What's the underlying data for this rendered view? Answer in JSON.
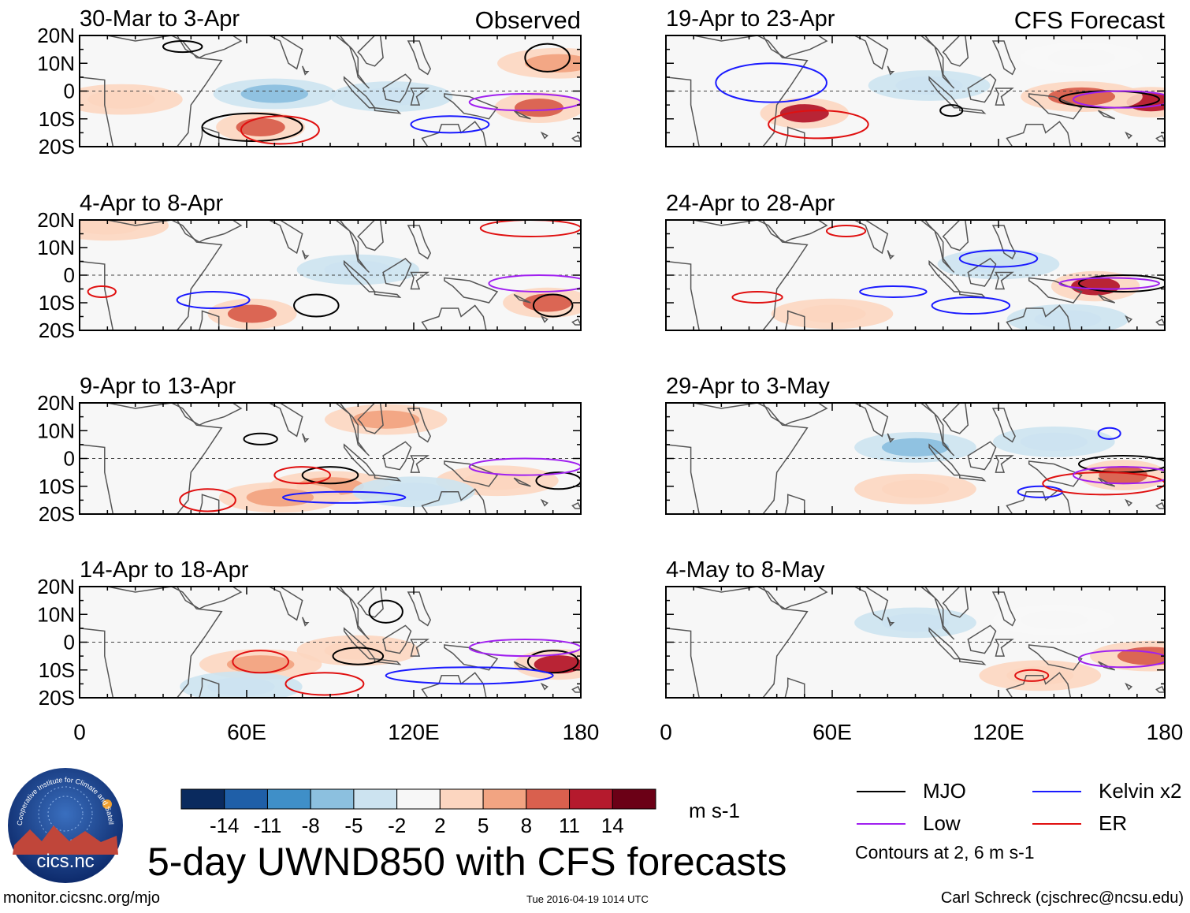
{
  "figure": {
    "title": "5-day UWND850 with CFS forecasts",
    "left_column_label": "Observed",
    "right_column_label": "CFS Forecast",
    "units": "m s-1",
    "contour_note": "Contours at 2, 6 m s-1",
    "footer_left": "monitor.cicsnc.org/mjo",
    "footer_mid": "Tue 2016-04-19 1014 UTC",
    "footer_right": "Carl Schreck (cjschrec@ncsu.edu)",
    "logo_text": "cics.nc",
    "logo_ring_text": "Cooperative Institute for Climate and Satellites"
  },
  "legend": [
    {
      "name": "MJO",
      "color": "#000000"
    },
    {
      "name": "Kelvin x2",
      "color": "#1a1aff"
    },
    {
      "name": "Low",
      "color": "#a020f0"
    },
    {
      "name": "ER",
      "color": "#e01010"
    }
  ],
  "colorbar": {
    "colors": [
      "#0a2a5e",
      "#1f5fa8",
      "#3f8fc8",
      "#8cc0df",
      "#cce3f0",
      "#f7f7f7",
      "#fcd6c0",
      "#f2a482",
      "#d9604e",
      "#b51a2d",
      "#6b0016"
    ],
    "labels": [
      "-14",
      "-11",
      "-8",
      "-5",
      "-2",
      "2",
      "5",
      "8",
      "11",
      "14"
    ]
  },
  "chart_data": [
    {
      "type": "heatmap",
      "panel": "Observed 1",
      "title": "30-Mar to 3-Apr",
      "xlim": [
        0,
        180
      ],
      "ylim": [
        -20,
        20
      ],
      "xticks": [
        0,
        60,
        120,
        180
      ],
      "xtick_labels": [
        "0",
        "60E",
        "120E",
        "180"
      ],
      "yticks": [
        20,
        10,
        0,
        -10,
        -20
      ],
      "ytick_labels": [
        "20N",
        "10N",
        "0",
        "10S",
        "20S"
      ],
      "anomalies": [
        {
          "lon": 70,
          "lat": -1,
          "value": -6
        },
        {
          "lon": 112,
          "lat": -2,
          "value": -3
        },
        {
          "lon": 65,
          "lat": -13,
          "value": 9
        },
        {
          "lon": 165,
          "lat": -6,
          "value": 9
        },
        {
          "lon": 172,
          "lat": 10,
          "value": 5
        },
        {
          "lon": 15,
          "lat": -3,
          "value": 3
        }
      ],
      "contours": [
        {
          "wave": "MJO",
          "lon": 62,
          "lat": -13,
          "rx": 18,
          "ry": 5
        },
        {
          "wave": "MJO",
          "lon": 37,
          "lat": 16,
          "rx": 7,
          "ry": 2
        },
        {
          "wave": "MJO",
          "lon": 168,
          "lat": 12,
          "rx": 8,
          "ry": 5
        },
        {
          "wave": "Kelvin x2",
          "lon": 133,
          "lat": -12,
          "rx": 14,
          "ry": 3
        },
        {
          "wave": "Low",
          "lon": 160,
          "lat": -4,
          "rx": 20,
          "ry": 3
        },
        {
          "wave": "ER",
          "lon": 72,
          "lat": -14,
          "rx": 14,
          "ry": 5
        }
      ]
    },
    {
      "type": "heatmap",
      "panel": "Observed 2",
      "title": "4-Apr to 8-Apr",
      "xlim": [
        0,
        180
      ],
      "ylim": [
        -20,
        20
      ],
      "xticks": [
        0,
        60,
        120,
        180
      ],
      "xtick_labels": [
        "0",
        "60E",
        "120E",
        "180"
      ],
      "yticks": [
        20,
        10,
        0,
        -10,
        -20
      ],
      "ytick_labels": [
        "20N",
        "10N",
        "0",
        "10S",
        "20S"
      ],
      "anomalies": [
        {
          "lon": 62,
          "lat": -14,
          "value": 9
        },
        {
          "lon": 168,
          "lat": -10,
          "value": 10
        },
        {
          "lon": 100,
          "lat": 2,
          "value": -3
        },
        {
          "lon": 10,
          "lat": 18,
          "value": 4
        }
      ],
      "contours": [
        {
          "wave": "MJO",
          "lon": 85,
          "lat": -11,
          "rx": 8,
          "ry": 4
        },
        {
          "wave": "MJO",
          "lon": 170,
          "lat": -11,
          "rx": 7,
          "ry": 4
        },
        {
          "wave": "Kelvin x2",
          "lon": 48,
          "lat": -9,
          "rx": 13,
          "ry": 3
        },
        {
          "wave": "ER",
          "lon": 162,
          "lat": 17,
          "rx": 18,
          "ry": 3
        },
        {
          "wave": "ER",
          "lon": 8,
          "lat": -6,
          "rx": 5,
          "ry": 2
        },
        {
          "wave": "Low",
          "lon": 165,
          "lat": -3,
          "rx": 18,
          "ry": 3
        }
      ]
    },
    {
      "type": "heatmap",
      "panel": "Observed 3",
      "title": "9-Apr to 13-Apr",
      "xlim": [
        0,
        180
      ],
      "ylim": [
        -20,
        20
      ],
      "xticks": [
        0,
        60,
        120,
        180
      ],
      "xtick_labels": [
        "0",
        "60E",
        "120E",
        "180"
      ],
      "yticks": [
        20,
        10,
        0,
        -10,
        -20
      ],
      "ytick_labels": [
        "20N",
        "10N",
        "0",
        "10S",
        "20S"
      ],
      "anomalies": [
        {
          "lon": 110,
          "lat": 14,
          "value": 5
        },
        {
          "lon": 90,
          "lat": -10,
          "value": 5
        },
        {
          "lon": 72,
          "lat": -14,
          "value": 7
        },
        {
          "lon": 150,
          "lat": -8,
          "value": 4
        },
        {
          "lon": 120,
          "lat": -12,
          "value": -4
        }
      ],
      "contours": [
        {
          "wave": "MJO",
          "lon": 90,
          "lat": -6,
          "rx": 10,
          "ry": 3
        },
        {
          "wave": "MJO",
          "lon": 65,
          "lat": 7,
          "rx": 6,
          "ry": 2
        },
        {
          "wave": "MJO",
          "lon": 172,
          "lat": -8,
          "rx": 8,
          "ry": 3
        },
        {
          "wave": "Kelvin x2",
          "lon": 95,
          "lat": -14,
          "rx": 22,
          "ry": 2
        },
        {
          "wave": "ER",
          "lon": 80,
          "lat": -6,
          "rx": 10,
          "ry": 3
        },
        {
          "wave": "ER",
          "lon": 46,
          "lat": -15,
          "rx": 10,
          "ry": 4
        },
        {
          "wave": "Low",
          "lon": 160,
          "lat": -3,
          "rx": 20,
          "ry": 3
        }
      ]
    },
    {
      "type": "heatmap",
      "panel": "Observed 4",
      "title": "14-Apr to 18-Apr",
      "xlim": [
        0,
        180
      ],
      "ylim": [
        -20,
        20
      ],
      "xticks": [
        0,
        60,
        120,
        180
      ],
      "xtick_labels": [
        "0",
        "60E",
        "120E",
        "180"
      ],
      "yticks": [
        20,
        10,
        0,
        -10,
        -20
      ],
      "ytick_labels": [
        "20N",
        "10N",
        "0",
        "10S",
        "20S"
      ],
      "anomalies": [
        {
          "lon": 65,
          "lat": -8,
          "value": 6
        },
        {
          "lon": 172,
          "lat": -8,
          "value": 11
        },
        {
          "lon": 58,
          "lat": -16,
          "value": -5
        },
        {
          "lon": 100,
          "lat": -3,
          "value": 2
        }
      ],
      "contours": [
        {
          "wave": "MJO",
          "lon": 100,
          "lat": -5,
          "rx": 9,
          "ry": 3
        },
        {
          "wave": "MJO",
          "lon": 110,
          "lat": 11,
          "rx": 6,
          "ry": 4
        },
        {
          "wave": "MJO",
          "lon": 170,
          "lat": -7,
          "rx": 9,
          "ry": 4
        },
        {
          "wave": "Kelvin x2",
          "lon": 140,
          "lat": -12,
          "rx": 30,
          "ry": 3
        },
        {
          "wave": "ER",
          "lon": 65,
          "lat": -7,
          "rx": 10,
          "ry": 4
        },
        {
          "wave": "ER",
          "lon": 88,
          "lat": -15,
          "rx": 14,
          "ry": 4
        },
        {
          "wave": "Low",
          "lon": 160,
          "lat": -2,
          "rx": 20,
          "ry": 3
        }
      ]
    },
    {
      "type": "heatmap",
      "panel": "Forecast 1",
      "title": "19-Apr to 23-Apr",
      "xlim": [
        0,
        180
      ],
      "ylim": [
        -20,
        20
      ],
      "xticks": [
        0,
        60,
        120,
        180
      ],
      "xtick_labels": [
        "0",
        "60E",
        "120E",
        "180"
      ],
      "yticks": [
        20,
        10,
        0,
        -10,
        -20
      ],
      "ytick_labels": [
        "20N",
        "10N",
        "0",
        "10S",
        "20S"
      ],
      "anomalies": [
        {
          "lon": 50,
          "lat": -8,
          "value": 12
        },
        {
          "lon": 175,
          "lat": -4,
          "value": 13
        },
        {
          "lon": 150,
          "lat": -2,
          "value": 8
        },
        {
          "lon": 95,
          "lat": 2,
          "value": -3
        },
        {
          "lon": 150,
          "lat": 12,
          "value": -2
        }
      ],
      "contours": [
        {
          "wave": "MJO",
          "lon": 160,
          "lat": -3,
          "rx": 18,
          "ry": 3
        },
        {
          "wave": "MJO",
          "lon": 103,
          "lat": -7,
          "rx": 4,
          "ry": 2
        },
        {
          "wave": "Kelvin x2",
          "lon": 38,
          "lat": 3,
          "rx": 20,
          "ry": 7
        },
        {
          "wave": "ER",
          "lon": 55,
          "lat": -12,
          "rx": 18,
          "ry": 5
        },
        {
          "wave": "Low",
          "lon": 165,
          "lat": -3,
          "rx": 18,
          "ry": 3
        }
      ]
    },
    {
      "type": "heatmap",
      "panel": "Forecast 2",
      "title": "24-Apr to 28-Apr",
      "xlim": [
        0,
        180
      ],
      "ylim": [
        -20,
        20
      ],
      "xticks": [
        0,
        60,
        120,
        180
      ],
      "xtick_labels": [
        "0",
        "60E",
        "120E",
        "180"
      ],
      "yticks": [
        20,
        10,
        0,
        -10,
        -20
      ],
      "ytick_labels": [
        "20N",
        "10N",
        "0",
        "10S",
        "20S"
      ],
      "anomalies": [
        {
          "lon": 155,
          "lat": -4,
          "value": 11
        },
        {
          "lon": 120,
          "lat": 4,
          "value": -3
        },
        {
          "lon": 145,
          "lat": -16,
          "value": -5
        },
        {
          "lon": 60,
          "lat": -14,
          "value": 3
        }
      ],
      "contours": [
        {
          "wave": "MJO",
          "lon": 165,
          "lat": -3,
          "rx": 16,
          "ry": 3
        },
        {
          "wave": "Kelvin x2",
          "lon": 120,
          "lat": 6,
          "rx": 14,
          "ry": 3
        },
        {
          "wave": "Kelvin x2",
          "lon": 82,
          "lat": -6,
          "rx": 12,
          "ry": 2
        },
        {
          "wave": "Kelvin x2",
          "lon": 110,
          "lat": -11,
          "rx": 14,
          "ry": 3
        },
        {
          "wave": "ER",
          "lon": 65,
          "lat": 16,
          "rx": 7,
          "ry": 2
        },
        {
          "wave": "ER",
          "lon": 33,
          "lat": -8,
          "rx": 9,
          "ry": 2
        },
        {
          "wave": "Low",
          "lon": 160,
          "lat": -3,
          "rx": 18,
          "ry": 2
        }
      ]
    },
    {
      "type": "heatmap",
      "panel": "Forecast 3",
      "title": "29-Apr to 3-May",
      "xlim": [
        0,
        180
      ],
      "ylim": [
        -20,
        20
      ],
      "xticks": [
        0,
        60,
        120,
        180
      ],
      "xtick_labels": [
        "0",
        "60E",
        "120E",
        "180"
      ],
      "yticks": [
        20,
        10,
        0,
        -10,
        -20
      ],
      "ytick_labels": [
        "20N",
        "10N",
        "0",
        "10S",
        "20S"
      ],
      "anomalies": [
        {
          "lon": 90,
          "lat": 4,
          "value": -6
        },
        {
          "lon": 165,
          "lat": -6,
          "value": 9
        },
        {
          "lon": 90,
          "lat": -11,
          "value": 3
        },
        {
          "lon": 140,
          "lat": 6,
          "value": -3
        }
      ],
      "contours": [
        {
          "wave": "MJO",
          "lon": 165,
          "lat": -2,
          "rx": 16,
          "ry": 3
        },
        {
          "wave": "Kelvin x2",
          "lon": 160,
          "lat": 9,
          "rx": 4,
          "ry": 2
        },
        {
          "wave": "Kelvin x2",
          "lon": 135,
          "lat": -12,
          "rx": 8,
          "ry": 2
        },
        {
          "wave": "ER",
          "lon": 158,
          "lat": -9,
          "rx": 22,
          "ry": 4
        },
        {
          "wave": "Low",
          "lon": 165,
          "lat": -6,
          "rx": 18,
          "ry": 3
        }
      ]
    },
    {
      "type": "heatmap",
      "panel": "Forecast 4",
      "title": "4-May to 8-May",
      "xlim": [
        0,
        180
      ],
      "ylim": [
        -20,
        20
      ],
      "xticks": [
        0,
        60,
        120,
        180
      ],
      "xtick_labels": [
        "0",
        "60E",
        "120E",
        "180"
      ],
      "yticks": [
        20,
        10,
        0,
        -10,
        -20
      ],
      "ytick_labels": [
        "20N",
        "10N",
        "0",
        "10S",
        "20S"
      ],
      "anomalies": [
        {
          "lon": 90,
          "lat": 7,
          "value": -5
        },
        {
          "lon": 175,
          "lat": -5,
          "value": 8
        },
        {
          "lon": 135,
          "lat": -12,
          "value": 3
        },
        {
          "lon": 140,
          "lat": 8,
          "value": -2
        }
      ],
      "contours": [
        {
          "wave": "Low",
          "lon": 165,
          "lat": -6,
          "rx": 16,
          "ry": 3
        },
        {
          "wave": "ER",
          "lon": 132,
          "lat": -12,
          "rx": 6,
          "ry": 2
        }
      ]
    }
  ]
}
